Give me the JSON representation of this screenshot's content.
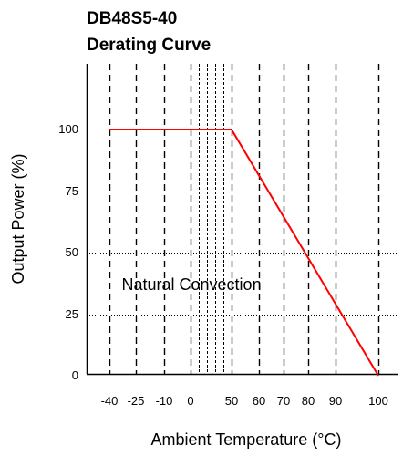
{
  "chart_data": {
    "type": "line",
    "title_lines": [
      "DB48S5-40",
      "Derating Curve"
    ],
    "xlabel": "Ambient Temperature (°C)",
    "ylabel": "Output Power (%)",
    "xlim": [
      -40,
      100
    ],
    "ylim": [
      0,
      125
    ],
    "x_axis_scale": "categorical-uneven",
    "x_ticks": [
      {
        "label": "-40",
        "value": -40
      },
      {
        "label": "-25",
        "value": -25
      },
      {
        "label": "-10",
        "value": -10
      },
      {
        "label": "0",
        "value": 0
      },
      {
        "label": "50",
        "value": 50
      },
      {
        "label": "60",
        "value": 60
      },
      {
        "label": "70",
        "value": 70
      },
      {
        "label": "80",
        "value": 80
      },
      {
        "label": "90",
        "value": 90
      },
      {
        "label": "100",
        "value": 100
      }
    ],
    "y_ticks": [
      {
        "label": "0",
        "value": 0
      },
      {
        "label": "25",
        "value": 25
      },
      {
        "label": "50",
        "value": 50
      },
      {
        "label": "75",
        "value": 75
      },
      {
        "label": "100",
        "value": 100
      }
    ],
    "x_gridlines": [
      -40,
      -25,
      -10,
      0,
      10,
      20,
      30,
      40,
      50,
      60,
      70,
      80,
      90,
      100
    ],
    "major_x_gridlines": [
      -40,
      -25,
      -10,
      0,
      50,
      60,
      70,
      80,
      90,
      100
    ],
    "minor_x_gridlines": [
      10,
      20,
      30,
      40
    ],
    "y_gridlines": [
      25,
      50,
      75,
      100
    ],
    "grid": true,
    "annotation": {
      "text": "Natural Convection",
      "x": -33,
      "y": 37
    },
    "series": [
      {
        "color": "#ff0000",
        "points": [
          {
            "x": -40,
            "y": 100
          },
          {
            "x": 50,
            "y": 100
          },
          {
            "x": 100,
            "y": 0
          }
        ]
      }
    ],
    "colors": {
      "line": "#ff0000",
      "grid": "#000000",
      "axis": "#000000",
      "background": "#ffffff"
    }
  }
}
